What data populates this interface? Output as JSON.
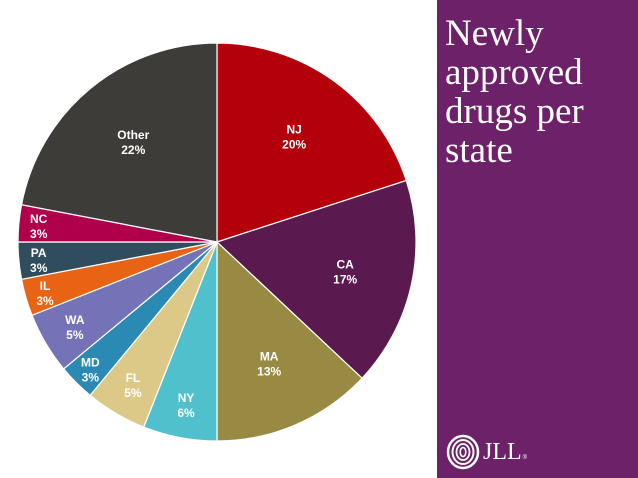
{
  "panel": {
    "title": "Newly approved drugs per state",
    "background": "#6d2169",
    "logo_text": "JLL",
    "logo_mark": "®"
  },
  "chart_data": {
    "type": "pie",
    "title": "Newly approved drugs per state",
    "start": "12 o'clock",
    "direction": "clockwise",
    "slices": [
      {
        "label": "NJ",
        "value": 20,
        "value_label": "20%",
        "color": "#b3000b"
      },
      {
        "label": "CA",
        "value": 17,
        "value_label": "17%",
        "color": "#5a1a4f"
      },
      {
        "label": "MA",
        "value": 13,
        "value_label": "13%",
        "color": "#998a43"
      },
      {
        "label": "NY",
        "value": 6,
        "value_label": "6%",
        "color": "#4fc0cc"
      },
      {
        "label": "FL",
        "value": 5,
        "value_label": "5%",
        "color": "#dcc987"
      },
      {
        "label": "MD",
        "value": 3,
        "value_label": "3%",
        "color": "#2a8ab3"
      },
      {
        "label": "WA",
        "value": 5,
        "value_label": "5%",
        "color": "#7473b8"
      },
      {
        "label": "IL",
        "value": 3,
        "value_label": "3%",
        "color": "#e86313"
      },
      {
        "label": "PA",
        "value": 3,
        "value_label": "3%",
        "color": "#2f4d5d"
      },
      {
        "label": "NC",
        "value": 3,
        "value_label": "3%",
        "color": "#b0004c"
      },
      {
        "label": "Other",
        "value": 22,
        "value_label": "22%",
        "color": "#3d3c39"
      }
    ]
  }
}
